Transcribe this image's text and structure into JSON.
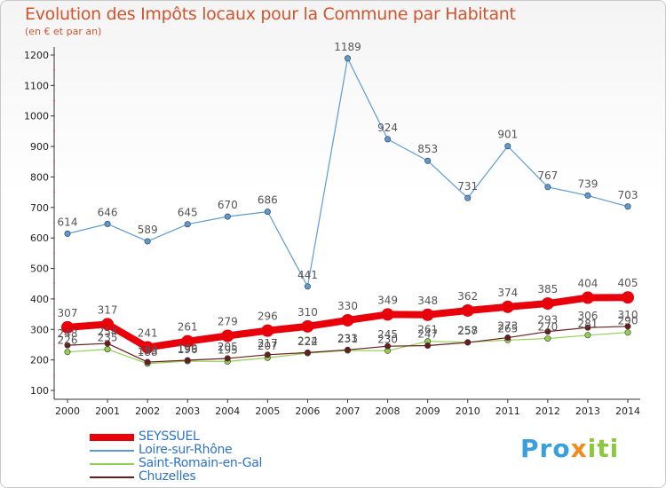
{
  "title": "Evolution des Impôts locaux pour la Commune par Habitant",
  "subtitle": "(en € et par an)",
  "logo": {
    "parts": [
      "Pro",
      "x",
      "iti"
    ],
    "colors": [
      "#3aa0dc",
      "#f08c1e",
      "#8cc83c"
    ]
  },
  "chart_data": {
    "type": "line",
    "x": [
      2000,
      2001,
      2002,
      2003,
      2004,
      2005,
      2006,
      2007,
      2008,
      2009,
      2010,
      2011,
      2012,
      2013,
      2014
    ],
    "ylim": [
      100,
      1200
    ],
    "yticks": [
      100,
      200,
      300,
      400,
      500,
      600,
      700,
      800,
      900,
      1000,
      1100,
      1200
    ],
    "grid": false,
    "legend_position": "bottom-left",
    "series": [
      {
        "name": "SEYSSUEL",
        "color": "#e8000b",
        "width": 8,
        "values": [
          307,
          317,
          241,
          261,
          279,
          296,
          310,
          330,
          349,
          348,
          362,
          374,
          385,
          404,
          405
        ]
      },
      {
        "name": "Loire-sur-Rhône",
        "color": "#5b9bd5",
        "width": 1.2,
        "values": [
          614,
          646,
          589,
          645,
          670,
          686,
          441,
          1189,
          924,
          853,
          731,
          901,
          767,
          739,
          703
        ]
      },
      {
        "name": "Saint-Romain-en-Gal",
        "color": "#92d050",
        "width": 1.2,
        "values": [
          226,
          235,
          188,
          196,
          195,
          207,
          222,
          231,
          230,
          261,
          258,
          265,
          270,
          281,
          290
        ]
      },
      {
        "name": "Chuzelles",
        "color": "#6b1c1c",
        "width": 1.2,
        "values": [
          248,
          254,
          193,
          199,
          205,
          217,
          224,
          233,
          245,
          247,
          257,
          273,
          293,
          306,
          310
        ]
      }
    ]
  }
}
